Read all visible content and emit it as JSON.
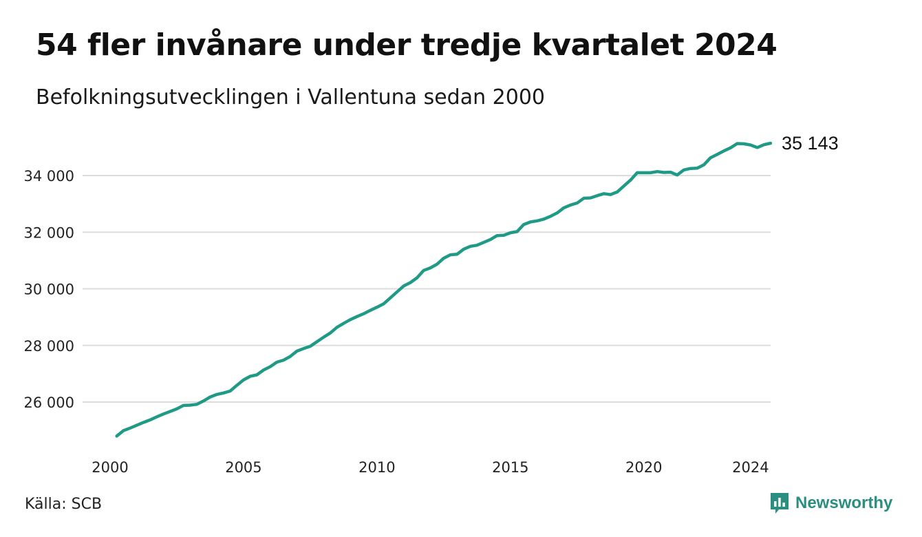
{
  "header": {
    "title": "54 fler invånare under tredje kvartalet 2024",
    "subtitle": "Befolkningsutvecklingen i Vallentuna sedan 2000"
  },
  "footer": {
    "source": "Källa: SCB",
    "brand": "Newsworthy",
    "brand_icon": "bar-chart-speech-bubble-icon"
  },
  "colors": {
    "line": "#1f9a86",
    "brand": "#2a8f80",
    "grid": "#dddddd"
  },
  "chart_data": {
    "type": "line",
    "title": "54 fler invånare under tredje kvartalet 2024",
    "subtitle": "Befolkningsutvecklingen i Vallentuna sedan 2000",
    "xlabel": "",
    "ylabel": "",
    "xlim": [
      2000,
      2024.75
    ],
    "ylim": [
      24600,
      35300
    ],
    "grid": true,
    "x_ticks": [
      2000,
      2005,
      2010,
      2015,
      2020,
      2024
    ],
    "x_tick_labels": [
      "2000",
      "2005",
      "2010",
      "2015",
      "2020",
      "2024"
    ],
    "y_ticks": [
      26000,
      28000,
      30000,
      32000,
      34000
    ],
    "y_tick_labels": [
      "26 000",
      "28 000",
      "30 000",
      "32 000",
      "34 000"
    ],
    "end_label": "35 143",
    "series": [
      {
        "x": [
          2000.25,
          2000.5,
          2000.75,
          2001.0,
          2001.25,
          2001.5,
          2001.75,
          2002.0,
          2002.25,
          2002.5,
          2002.75,
          2003.0,
          2003.25,
          2003.5,
          2003.75,
          2004.0,
          2004.25,
          2004.5,
          2004.75,
          2005.0,
          2005.25,
          2005.5,
          2005.75,
          2006.0,
          2006.25,
          2006.5,
          2006.75,
          2007.0,
          2007.25,
          2007.5,
          2007.75,
          2008.0,
          2008.25,
          2008.5,
          2008.75,
          2009.0,
          2009.25,
          2009.5,
          2009.75,
          2010.0,
          2010.25,
          2010.5,
          2010.75,
          2011.0,
          2011.25,
          2011.5,
          2011.75,
          2012.0,
          2012.25,
          2012.5,
          2012.75,
          2013.0,
          2013.25,
          2013.5,
          2013.75,
          2014.0,
          2014.25,
          2014.5,
          2014.75,
          2015.0,
          2015.25,
          2015.5,
          2015.75,
          2016.0,
          2016.25,
          2016.5,
          2016.75,
          2017.0,
          2017.25,
          2017.5,
          2017.75,
          2018.0,
          2018.25,
          2018.5,
          2018.75,
          2019.0,
          2019.25,
          2019.5,
          2019.75,
          2020.0,
          2020.25,
          2020.5,
          2020.75,
          2021.0,
          2021.25,
          2021.5,
          2021.75,
          2022.0,
          2022.25,
          2022.5,
          2022.75,
          2023.0,
          2023.25,
          2023.5,
          2023.75,
          2024.0,
          2024.25,
          2024.5,
          2024.75
        ],
        "y": [
          24800,
          24990,
          25080,
          25180,
          25280,
          25370,
          25480,
          25580,
          25670,
          25760,
          25880,
          25890,
          25920,
          26040,
          26180,
          26270,
          26320,
          26390,
          26590,
          26780,
          26910,
          26960,
          27130,
          27250,
          27410,
          27480,
          27610,
          27800,
          27890,
          27970,
          28130,
          28290,
          28440,
          28640,
          28780,
          28910,
          29020,
          29120,
          29240,
          29350,
          29470,
          29680,
          29890,
          30100,
          30220,
          30390,
          30650,
          30740,
          30870,
          31080,
          31200,
          31220,
          31400,
          31500,
          31540,
          31640,
          31740,
          31880,
          31890,
          31980,
          32020,
          32270,
          32360,
          32400,
          32460,
          32560,
          32680,
          32860,
          32960,
          33030,
          33200,
          33210,
          33290,
          33360,
          33330,
          33420,
          33630,
          33840,
          34100,
          34100,
          34100,
          34140,
          34110,
          34120,
          34020,
          34200,
          34250,
          34260,
          34380,
          34630,
          34750,
          34870,
          34980,
          35130,
          35120,
          35080,
          34990,
          35089,
          35143
        ]
      }
    ]
  }
}
